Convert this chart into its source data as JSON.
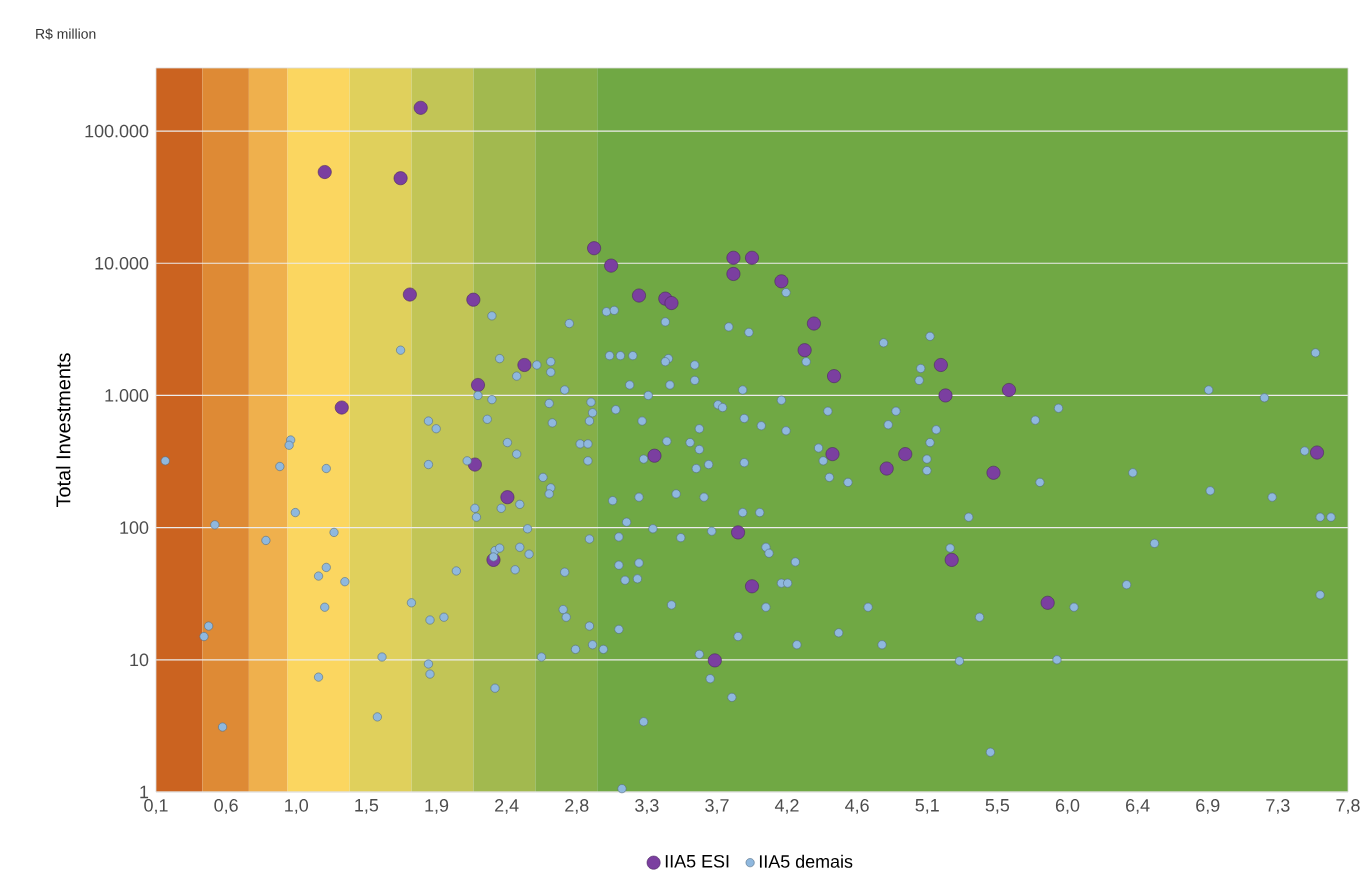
{
  "chart_data": {
    "type": "scatter",
    "ylabel": "Total Investments",
    "annotations": [
      "R$ million"
    ],
    "xlim": [
      0.1,
      7.8
    ],
    "xticks": [
      {
        "value": 0.1,
        "label": "0,1"
      },
      {
        "value": 0.553,
        "label": "0,6"
      },
      {
        "value": 1.006,
        "label": "1,0"
      },
      {
        "value": 1.459,
        "label": "1,5"
      },
      {
        "value": 1.912,
        "label": "1,9"
      },
      {
        "value": 2.365,
        "label": "2,4"
      },
      {
        "value": 2.818,
        "label": "2,8"
      },
      {
        "value": 3.271,
        "label": "3,3"
      },
      {
        "value": 3.724,
        "label": "3,7"
      },
      {
        "value": 4.176,
        "label": "4,2"
      },
      {
        "value": 4.629,
        "label": "4,6"
      },
      {
        "value": 5.082,
        "label": "5,1"
      },
      {
        "value": 5.535,
        "label": "5,5"
      },
      {
        "value": 5.988,
        "label": "6,0"
      },
      {
        "value": 6.441,
        "label": "6,4"
      },
      {
        "value": 6.894,
        "label": "6,9"
      },
      {
        "value": 7.347,
        "label": "7,3"
      },
      {
        "value": 7.8,
        "label": "7,8"
      }
    ],
    "ylim": [
      1,
      300000
    ],
    "yticks": [
      1,
      10,
      100,
      {
        "value": 1000,
        "label": "1.000"
      },
      {
        "value": 10000,
        "label": "10.000"
      },
      {
        "value": 100000,
        "label": "100.000"
      }
    ],
    "log": "y",
    "grid": "y",
    "legend": "bottom",
    "bands": [
      {
        "axis": "x",
        "from": 0.1,
        "to": 0.4,
        "color": "#cb6320"
      },
      {
        "axis": "x",
        "from": 0.4,
        "to": 0.7,
        "color": "#de8a35"
      },
      {
        "axis": "x",
        "from": 0.7,
        "to": 0.95,
        "color": "#efb04d"
      },
      {
        "axis": "x",
        "from": 0.95,
        "to": 1.35,
        "color": "#fbd660"
      },
      {
        "axis": "x",
        "from": 1.35,
        "to": 1.75,
        "color": "#e0d05c"
      },
      {
        "axis": "x",
        "from": 1.75,
        "to": 2.15,
        "color": "#c2c556"
      },
      {
        "axis": "x",
        "from": 2.15,
        "to": 2.55,
        "color": "#a2b94f"
      },
      {
        "axis": "x",
        "from": 2.55,
        "to": 2.95,
        "color": "#86af48"
      },
      {
        "axis": "x",
        "from": 2.95,
        "to": 7.8,
        "color": "#70a844"
      }
    ],
    "series": [
      {
        "name": "IIA5 ESI",
        "color": "#7b3fa0",
        "x": [
          1.81,
          1.19,
          1.68,
          1.74,
          2.15,
          1.3,
          2.18,
          2.16,
          2.93,
          3.04,
          3.22,
          3.39,
          3.43,
          3.83,
          3.95,
          3.83,
          4.14,
          4.35,
          4.29,
          4.48,
          2.48,
          3.32,
          2.37,
          2.28,
          3.86,
          3.95,
          3.71,
          4.47,
          4.82,
          4.94,
          5.17,
          5.2,
          5.61,
          5.51,
          5.24,
          5.86,
          7.6
        ],
        "values": [
          150000,
          49000,
          44000,
          5800,
          5300,
          810,
          1200,
          300,
          13000,
          9600,
          5700,
          5400,
          5000,
          11000,
          11000,
          8300,
          7300,
          3500,
          2200,
          1400,
          1700,
          350,
          170,
          57,
          92,
          36,
          9.9,
          360,
          280,
          360,
          1700,
          1000,
          1100,
          260,
          57,
          27,
          370
        ]
      },
      {
        "name": "IIA5 demais",
        "color": "#8fb8de",
        "x": [
          0.16,
          0.48,
          0.44,
          0.41,
          0.53,
          0.81,
          0.97,
          0.96,
          0.9,
          1.0,
          1.2,
          1.25,
          1.15,
          1.2,
          1.32,
          1.19,
          1.15,
          1.56,
          1.53,
          1.68,
          1.86,
          1.91,
          1.86,
          2.04,
          1.75,
          1.87,
          1.96,
          1.86,
          1.87,
          2.11,
          2.18,
          2.27,
          2.32,
          2.43,
          2.56,
          2.65,
          2.65,
          2.74,
          2.77,
          2.27,
          2.24,
          2.37,
          2.43,
          2.64,
          2.66,
          2.6,
          2.65,
          2.64,
          2.33,
          2.45,
          2.16,
          2.17,
          2.5,
          2.29,
          2.32,
          2.28,
          2.45,
          2.51,
          2.42,
          2.74,
          2.73,
          2.75,
          2.59,
          2.29,
          2.81,
          2.9,
          2.92,
          2.99,
          3.09,
          2.9,
          3.05,
          2.84,
          2.89,
          2.89,
          2.9,
          2.92,
          2.91,
          3.07,
          3.01,
          3.06,
          3.03,
          3.1,
          3.18,
          3.16,
          3.24,
          3.25,
          3.22,
          3.14,
          3.09,
          3.31,
          3.09,
          3.22,
          3.13,
          3.21,
          3.25,
          3.11,
          3.39,
          3.41,
          3.39,
          3.42,
          3.28,
          3.4,
          3.46,
          3.49,
          3.43,
          3.58,
          3.58,
          3.73,
          3.76,
          3.61,
          3.55,
          3.61,
          3.59,
          3.67,
          3.64,
          3.69,
          3.61,
          3.68,
          3.82,
          3.8,
          3.93,
          3.89,
          3.9,
          4.01,
          3.9,
          3.89,
          4.0,
          4.04,
          4.06,
          4.23,
          4.14,
          4.18,
          4.04,
          3.86,
          4.24,
          4.17,
          4.3,
          4.14,
          4.17,
          4.38,
          4.41,
          4.44,
          4.45,
          4.57,
          4.51,
          4.7,
          4.79,
          4.8,
          4.83,
          4.88,
          5.1,
          5.04,
          5.03,
          5.14,
          5.1,
          5.08,
          5.08,
          5.35,
          5.23,
          5.42,
          5.29,
          5.49,
          5.78,
          5.93,
          5.81,
          6.03,
          5.92,
          6.41,
          6.37,
          6.55,
          6.9,
          6.91,
          7.26,
          7.31,
          7.59,
          7.52,
          7.62,
          7.69,
          7.62
        ],
        "values": [
          320,
          105,
          18,
          15,
          3.1,
          80,
          460,
          420,
          290,
          130,
          280,
          92,
          43,
          50,
          39,
          25,
          7.4,
          10.5,
          3.7,
          2200,
          640,
          560,
          300,
          47,
          27,
          20,
          21,
          9.3,
          7.8,
          320,
          1000,
          4000,
          1900,
          1400,
          1700,
          1800,
          1500,
          1100,
          3500,
          930,
          660,
          440,
          360,
          870,
          620,
          240,
          200,
          180,
          140,
          150,
          140,
          120,
          98,
          67,
          70,
          60,
          71,
          63,
          48,
          46,
          24,
          21,
          10.5,
          6.1,
          12,
          18,
          13,
          12,
          17,
          82,
          160,
          430,
          430,
          320,
          640,
          740,
          890,
          780,
          4300,
          4400,
          2000,
          2000,
          2000,
          1200,
          640,
          330,
          170,
          110,
          85,
          98,
          52,
          54,
          40,
          41,
          3.4,
          1.06,
          3600,
          1900,
          1800,
          1200,
          1000,
          450,
          180,
          84,
          26,
          1700,
          1300,
          850,
          810,
          560,
          440,
          390,
          280,
          300,
          170,
          94,
          11,
          7.2,
          5.2,
          3300,
          3000,
          1100,
          670,
          590,
          310,
          130,
          130,
          71,
          64,
          55,
          38,
          38,
          25,
          15,
          13,
          6000,
          1800,
          920,
          540,
          400,
          320,
          760,
          240,
          220,
          16,
          25,
          13,
          2500,
          600,
          760,
          2800,
          1600,
          1300,
          550,
          440,
          330,
          270,
          120,
          70,
          21,
          9.8,
          2.0,
          650,
          800,
          220,
          25,
          10,
          260,
          37,
          76,
          1100,
          190,
          960,
          170,
          2100,
          380,
          120,
          120,
          31
        ]
      }
    ]
  }
}
